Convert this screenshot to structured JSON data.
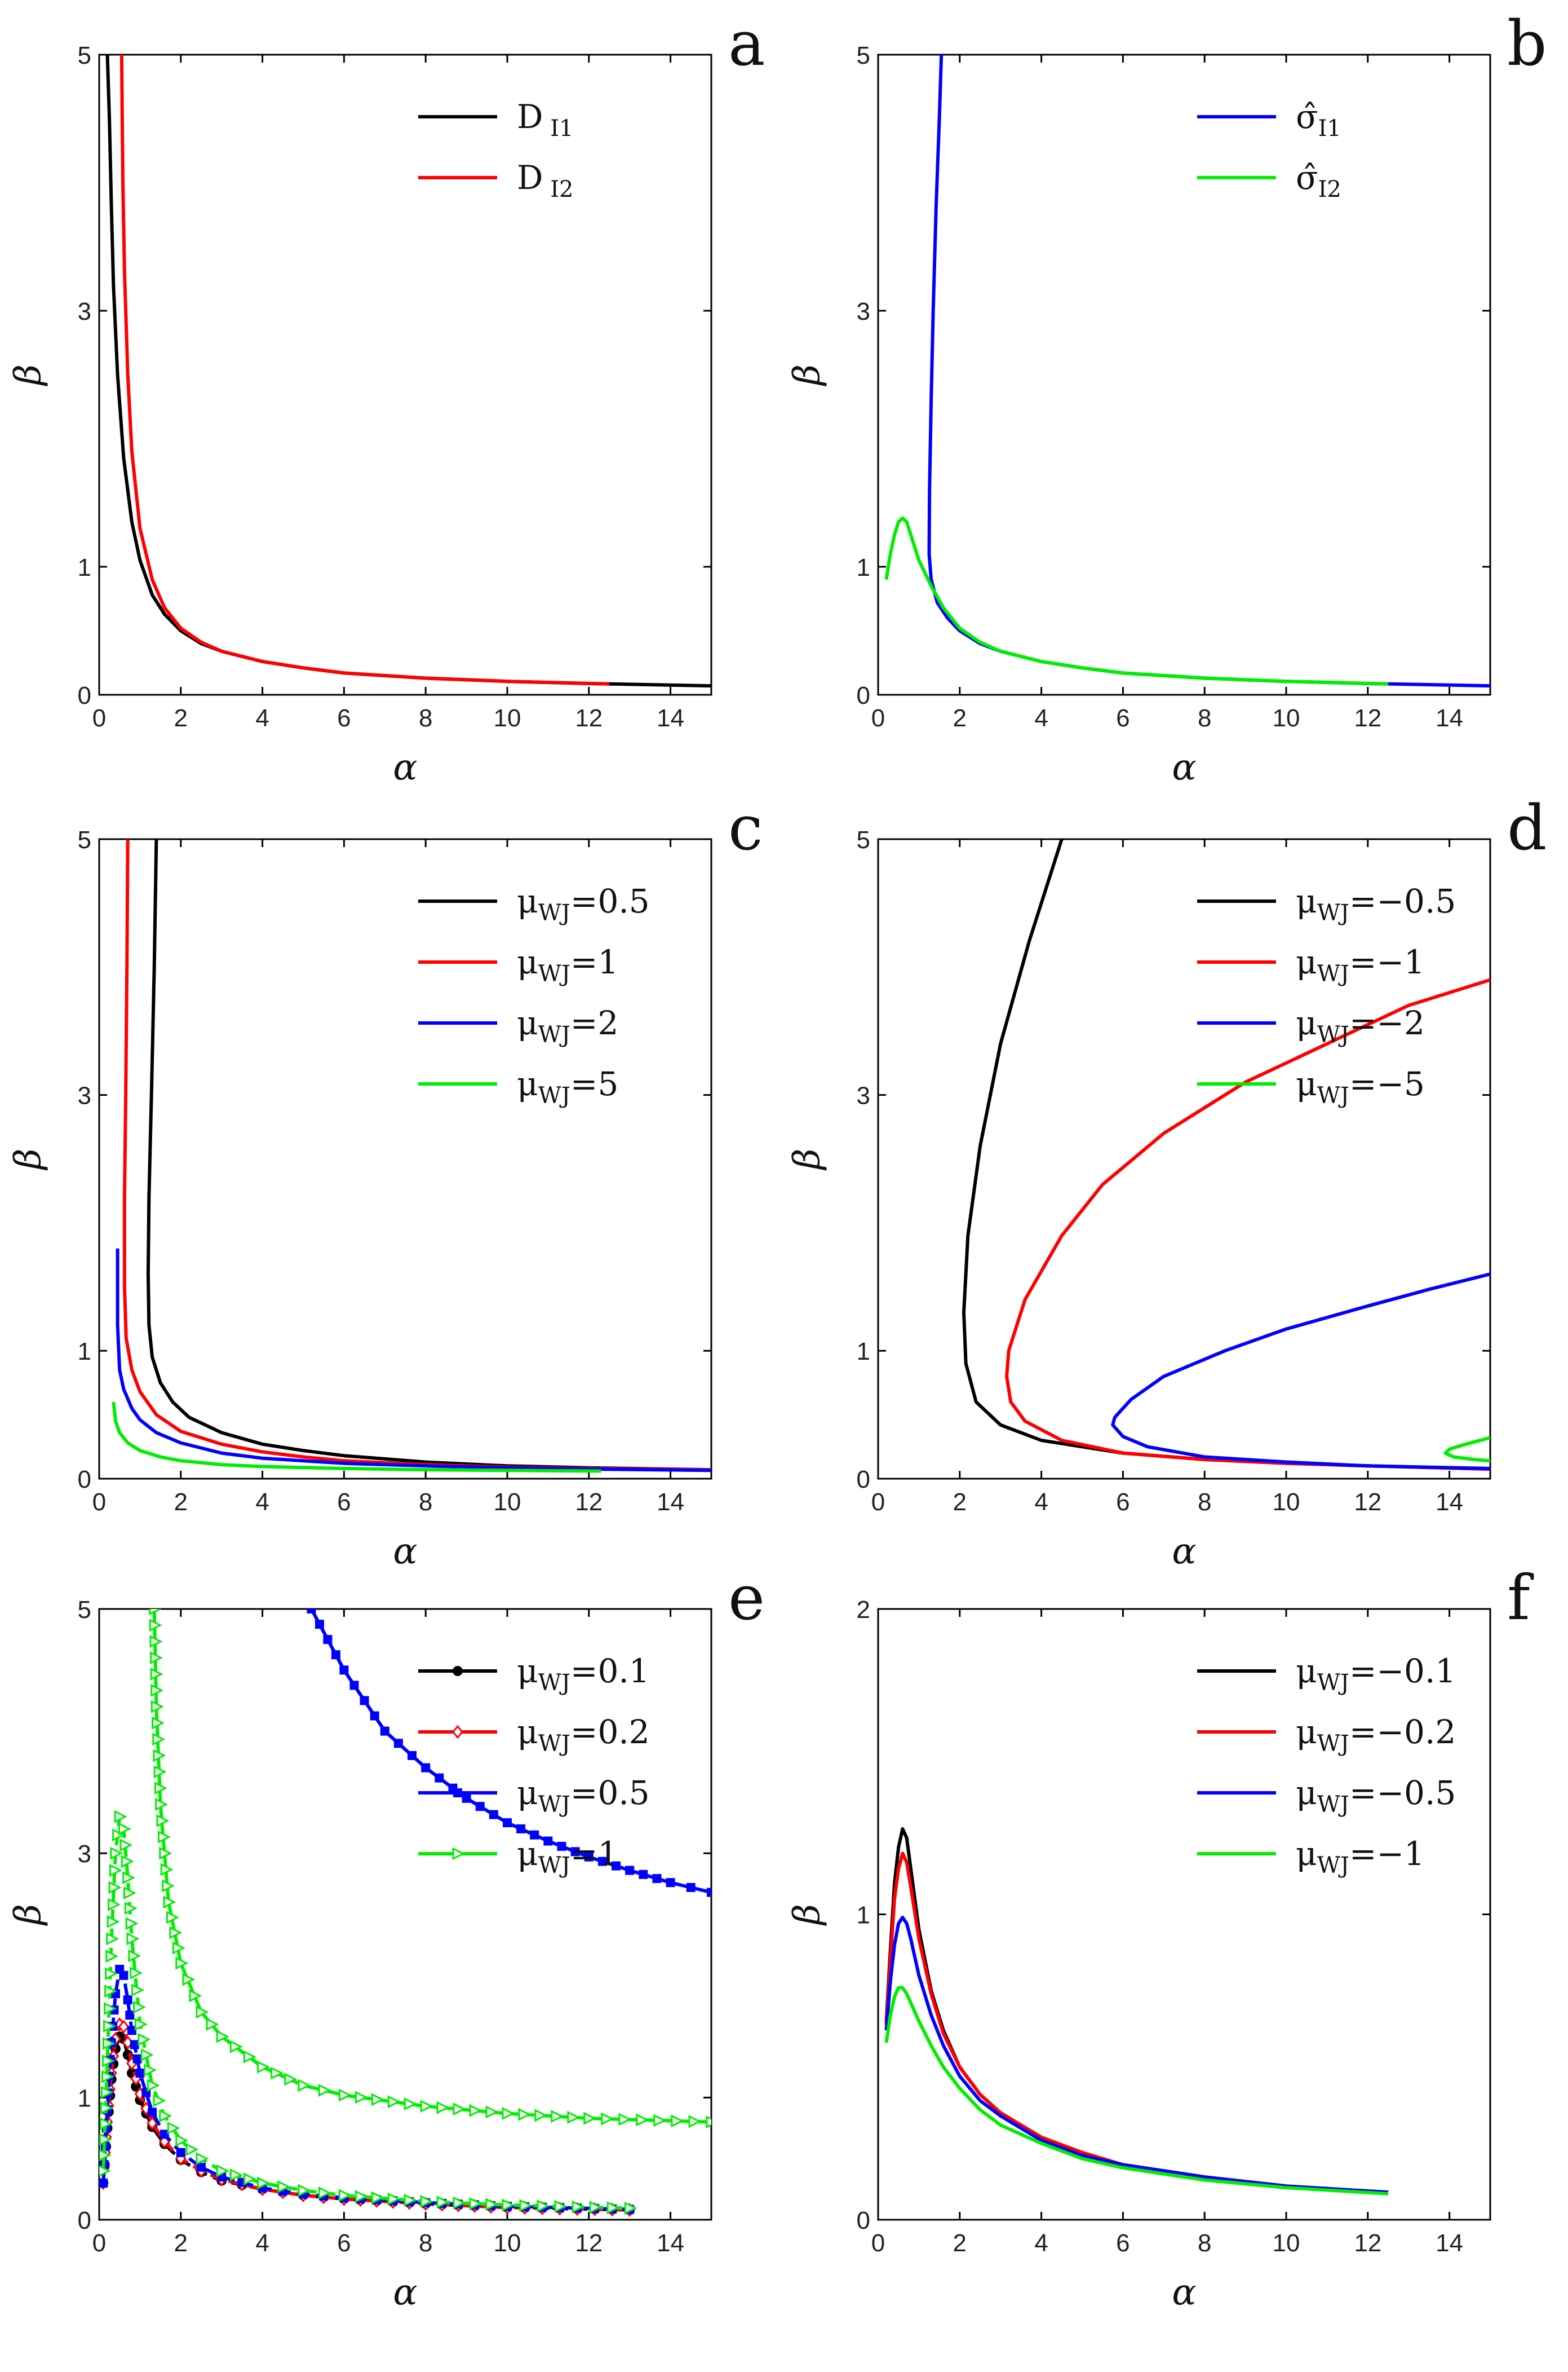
{
  "figure": {
    "description_count": 6
  },
  "chart_data": [
    {
      "panel": "a",
      "type": "line",
      "xlabel": "α",
      "ylabel": "β",
      "xlim": [
        0,
        15
      ],
      "ylim": [
        0,
        5
      ],
      "xticks": [
        0,
        2,
        4,
        6,
        8,
        10,
        12,
        14
      ],
      "yticks": [
        0,
        1,
        3,
        5
      ],
      "legend_position": "top-right",
      "series": [
        {
          "name": "D",
          "subscript": "I1",
          "color": "#000000",
          "x": [
            0.2,
            0.25,
            0.3,
            0.35,
            0.45,
            0.6,
            0.8,
            1.0,
            1.3,
            1.6,
            2.0,
            2.5,
            3,
            4,
            5,
            6,
            8,
            10,
            12,
            15
          ],
          "y": [
            5.0,
            4.5,
            3.8,
            3.2,
            2.5,
            1.85,
            1.35,
            1.05,
            0.78,
            0.63,
            0.5,
            0.4,
            0.34,
            0.26,
            0.21,
            0.17,
            0.13,
            0.105,
            0.088,
            0.07
          ]
        },
        {
          "name": "D",
          "subscript": "I2",
          "color": "#ff0000",
          "x": [
            0.55,
            0.58,
            0.62,
            0.7,
            0.8,
            1.0,
            1.3,
            1.6,
            2.0,
            2.5,
            3,
            4,
            5,
            6,
            8,
            10,
            12.5
          ],
          "y": [
            5.0,
            4.0,
            3.3,
            2.5,
            1.9,
            1.3,
            0.9,
            0.68,
            0.52,
            0.41,
            0.34,
            0.26,
            0.21,
            0.17,
            0.13,
            0.105,
            0.085
          ]
        }
      ]
    },
    {
      "panel": "b",
      "type": "line",
      "xlabel": "α",
      "ylabel": "β",
      "xlim": [
        0,
        15
      ],
      "ylim": [
        0,
        5
      ],
      "xticks": [
        0,
        2,
        4,
        6,
        8,
        10,
        12,
        14
      ],
      "yticks": [
        0,
        1,
        3,
        5
      ],
      "legend_position": "top-right",
      "series": [
        {
          "name": "σ̂",
          "subscript": "I1",
          "color": "#0000ff",
          "x": [
            1.55,
            1.5,
            1.42,
            1.35,
            1.3,
            1.26,
            1.25,
            1.3,
            1.45,
            1.7,
            2.0,
            2.5,
            3,
            4,
            5,
            6,
            8,
            10,
            12,
            15
          ],
          "y": [
            5.0,
            4.5,
            3.8,
            3.0,
            2.3,
            1.6,
            1.1,
            0.9,
            0.72,
            0.6,
            0.5,
            0.4,
            0.34,
            0.26,
            0.21,
            0.17,
            0.13,
            0.105,
            0.088,
            0.07
          ]
        },
        {
          "name": "σ̂",
          "subscript": "I2",
          "color": "#00ee00",
          "x": [
            0.2,
            0.3,
            0.4,
            0.5,
            0.6,
            0.7,
            0.8,
            1.0,
            1.3,
            1.6,
            2.0,
            2.5,
            3,
            4,
            5,
            6,
            8,
            10,
            12.5
          ],
          "y": [
            0.9,
            1.1,
            1.25,
            1.35,
            1.38,
            1.35,
            1.25,
            1.05,
            0.85,
            0.68,
            0.52,
            0.41,
            0.34,
            0.26,
            0.21,
            0.17,
            0.13,
            0.105,
            0.085
          ]
        }
      ]
    },
    {
      "panel": "c",
      "type": "line",
      "xlabel": "α",
      "ylabel": "β",
      "xlim": [
        0,
        15
      ],
      "ylim": [
        0,
        5
      ],
      "xticks": [
        0,
        2,
        4,
        6,
        8,
        10,
        12,
        14
      ],
      "yticks": [
        0,
        1,
        3,
        5
      ],
      "legend_position": "top-right",
      "series": [
        {
          "name": "μ",
          "subscript": "WJ",
          "suffix": "=0.5",
          "color": "#000000",
          "x": [
            1.4,
            1.35,
            1.28,
            1.22,
            1.2,
            1.22,
            1.3,
            1.5,
            1.8,
            2.2,
            3,
            4,
            5,
            6,
            8,
            10,
            12,
            15
          ],
          "y": [
            5.0,
            4.0,
            3.0,
            2.2,
            1.6,
            1.2,
            0.95,
            0.75,
            0.6,
            0.48,
            0.36,
            0.27,
            0.22,
            0.18,
            0.13,
            0.1,
            0.085,
            0.07
          ]
        },
        {
          "name": "μ",
          "subscript": "WJ",
          "suffix": "=1",
          "color": "#ff0000",
          "x": [
            0.7,
            0.68,
            0.65,
            0.62,
            0.62,
            0.66,
            0.8,
            1.0,
            1.4,
            2.0,
            3,
            4,
            5,
            6,
            8,
            10,
            12,
            15
          ],
          "y": [
            5.0,
            4.0,
            3.0,
            2.2,
            1.5,
            1.1,
            0.85,
            0.68,
            0.5,
            0.37,
            0.27,
            0.21,
            0.17,
            0.14,
            0.11,
            0.09,
            0.08,
            0.07
          ]
        },
        {
          "name": "μ",
          "subscript": "WJ",
          "suffix": "=2",
          "color": "#0000ff",
          "x": [
            0.45,
            0.45,
            0.5,
            0.6,
            0.8,
            1.0,
            1.4,
            2.0,
            3,
            4,
            6,
            8,
            10,
            12,
            15
          ],
          "y": [
            1.8,
            1.2,
            0.85,
            0.7,
            0.55,
            0.46,
            0.36,
            0.28,
            0.2,
            0.16,
            0.12,
            0.1,
            0.085,
            0.075,
            0.065
          ]
        },
        {
          "name": "μ",
          "subscript": "WJ",
          "suffix": "=5",
          "color": "#00ee00",
          "x": [
            0.35,
            0.4,
            0.5,
            0.7,
            1.0,
            1.5,
            2.0,
            3,
            4,
            6,
            8,
            10,
            12.3
          ],
          "y": [
            0.6,
            0.45,
            0.36,
            0.28,
            0.22,
            0.17,
            0.14,
            0.11,
            0.095,
            0.08,
            0.07,
            0.065,
            0.06
          ]
        }
      ]
    },
    {
      "panel": "d",
      "type": "line",
      "xlabel": "α",
      "ylabel": "β",
      "xlim": [
        0,
        15
      ],
      "ylim": [
        0,
        5
      ],
      "xticks": [
        0,
        2,
        4,
        6,
        8,
        10,
        12,
        14
      ],
      "yticks": [
        0,
        1,
        3,
        5
      ],
      "legend_position": "top-right",
      "series": [
        {
          "name": "μ",
          "subscript": "WJ",
          "suffix": "=−0.5",
          "color": "#000000",
          "x": [
            4.5,
            3.7,
            3.0,
            2.5,
            2.2,
            2.1,
            2.15,
            2.4,
            3.0,
            4,
            6,
            8,
            10,
            12,
            15
          ],
          "y": [
            5.0,
            4.2,
            3.4,
            2.6,
            1.9,
            1.3,
            0.9,
            0.6,
            0.42,
            0.3,
            0.2,
            0.15,
            0.12,
            0.1,
            0.075
          ]
        },
        {
          "name": "μ",
          "subscript": "WJ",
          "suffix": "=−1",
          "color": "#ff0000",
          "x": [
            15,
            13,
            11,
            9,
            7,
            5.5,
            4.5,
            3.6,
            3.2,
            3.15,
            3.25,
            3.6,
            4.5,
            6,
            8,
            10,
            12,
            15
          ],
          "y": [
            3.9,
            3.7,
            3.4,
            3.1,
            2.7,
            2.3,
            1.9,
            1.4,
            1.0,
            0.8,
            0.6,
            0.45,
            0.3,
            0.2,
            0.15,
            0.12,
            0.1,
            0.075
          ]
        },
        {
          "name": "μ",
          "subscript": "WJ",
          "suffix": "=−2",
          "color": "#0000ff",
          "x": [
            15,
            13.5,
            12,
            10,
            8.5,
            7,
            6.2,
            5.8,
            5.75,
            6.0,
            6.6,
            8,
            10,
            12,
            15
          ],
          "y": [
            1.6,
            1.48,
            1.35,
            1.17,
            1.0,
            0.8,
            0.62,
            0.48,
            0.42,
            0.33,
            0.25,
            0.17,
            0.13,
            0.1,
            0.08
          ]
        },
        {
          "name": "μ",
          "subscript": "WJ",
          "suffix": "=−5",
          "color": "#00ee00",
          "x": [
            15,
            14.4,
            14.0,
            13.9,
            14.1,
            14.6,
            15
          ],
          "y": [
            0.32,
            0.27,
            0.23,
            0.2,
            0.17,
            0.15,
            0.14
          ]
        }
      ]
    },
    {
      "panel": "e",
      "type": "line",
      "xlabel": "α",
      "ylabel": "β",
      "xlim": [
        0,
        15
      ],
      "ylim": [
        0,
        5
      ],
      "xticks": [
        0,
        2,
        4,
        6,
        8,
        10,
        12,
        14
      ],
      "yticks": [
        0,
        1,
        3,
        5
      ],
      "legend_position": "top-right",
      "series": [
        {
          "name": "μ",
          "subscript": "WJ",
          "suffix": "=0.1",
          "color": "#000000",
          "marker": "dot",
          "dashed": true,
          "x": [
            0.1,
            0.2,
            0.3,
            0.4,
            0.5,
            0.6,
            0.7,
            0.8,
            1.0,
            1.3,
            1.6,
            2.0,
            2.5,
            3,
            4,
            5,
            6,
            8,
            10,
            13
          ],
          "y": [
            0.3,
            0.75,
            1.15,
            1.4,
            1.5,
            1.48,
            1.35,
            1.2,
            0.98,
            0.76,
            0.62,
            0.49,
            0.39,
            0.32,
            0.25,
            0.2,
            0.17,
            0.13,
            0.1,
            0.08
          ]
        },
        {
          "name": "μ",
          "subscript": "WJ",
          "suffix": "=0.2",
          "color": "#ff0000",
          "marker": "diamond",
          "dashed": true,
          "x": [
            0.1,
            0.2,
            0.3,
            0.4,
            0.5,
            0.6,
            0.7,
            0.8,
            1.0,
            1.3,
            1.6,
            2.0,
            2.5,
            3,
            4,
            5,
            6,
            8,
            10,
            13
          ],
          "y": [
            0.3,
            0.8,
            1.2,
            1.48,
            1.6,
            1.58,
            1.45,
            1.28,
            1.03,
            0.79,
            0.64,
            0.5,
            0.4,
            0.33,
            0.25,
            0.2,
            0.17,
            0.13,
            0.1,
            0.08
          ]
        },
        {
          "name": "μ",
          "subscript": "WJ",
          "suffix": "=0.5",
          "color": "#0000ff",
          "marker": "square",
          "dashed": true,
          "x": [
            0.1,
            0.2,
            0.3,
            0.4,
            0.5,
            0.6,
            0.7,
            0.8,
            1.0,
            1.3,
            1.6,
            2.0,
            2.5,
            3,
            4,
            5,
            6,
            8,
            10,
            13
          ],
          "y": [
            0.3,
            0.9,
            1.45,
            1.85,
            2.05,
            2.0,
            1.8,
            1.55,
            1.2,
            0.88,
            0.7,
            0.55,
            0.43,
            0.35,
            0.26,
            0.21,
            0.18,
            0.14,
            0.11,
            0.085
          ]
        },
        {
          "name": "μ",
          "subscript": "WJ",
          "suffix": "=1",
          "color": "#00ee00",
          "marker": "triangle",
          "dashed": true,
          "x": [
            0.1,
            0.2,
            0.3,
            0.4,
            0.5,
            0.6,
            0.7,
            0.8,
            1.0,
            1.3,
            1.6,
            2.0,
            2.5,
            3,
            4,
            5,
            6,
            8,
            10,
            13
          ],
          "y": [
            0.4,
            1.3,
            2.3,
            3.0,
            3.3,
            3.2,
            2.8,
            2.3,
            1.6,
            1.1,
            0.85,
            0.65,
            0.5,
            0.4,
            0.3,
            0.24,
            0.2,
            0.15,
            0.12,
            0.095
          ]
        },
        {
          "name": "μ",
          "subscript": "WJ",
          "suffix": "=0.5",
          "color": "#0000ff",
          "marker": "square",
          "dashed": false,
          "legend": false,
          "x": [
            5.2,
            6,
            7,
            8,
            9,
            10,
            11,
            12,
            13,
            14,
            15
          ],
          "y": [
            5.0,
            4.5,
            4.0,
            3.7,
            3.45,
            3.25,
            3.1,
            2.97,
            2.86,
            2.76,
            2.68
          ]
        },
        {
          "name": "μ",
          "subscript": "WJ",
          "suffix": "=1",
          "color": "#00ee00",
          "marker": "triangle",
          "dashed": false,
          "legend": false,
          "x": [
            1.35,
            1.4,
            1.5,
            1.7,
            2.0,
            2.5,
            3,
            4,
            5,
            6,
            8,
            10,
            12,
            15
          ],
          "y": [
            5.0,
            4.2,
            3.4,
            2.6,
            2.1,
            1.7,
            1.5,
            1.25,
            1.1,
            1.02,
            0.93,
            0.87,
            0.83,
            0.8
          ]
        }
      ]
    },
    {
      "panel": "f",
      "type": "line",
      "xlabel": "α",
      "ylabel": "β",
      "xlim": [
        0,
        15
      ],
      "ylim": [
        0,
        2
      ],
      "xticks": [
        0,
        2,
        4,
        6,
        8,
        10,
        12,
        14
      ],
      "yticks": [
        0,
        1,
        2
      ],
      "legend_position": "top-right",
      "series": [
        {
          "name": "μ",
          "subscript": "WJ",
          "suffix": "=−0.1",
          "color": "#000000",
          "x": [
            0.2,
            0.3,
            0.4,
            0.5,
            0.6,
            0.7,
            0.8,
            1.0,
            1.3,
            1.6,
            2.0,
            2.5,
            3,
            4,
            5,
            6,
            8,
            10,
            12.5
          ],
          "y": [
            0.65,
            0.88,
            1.1,
            1.22,
            1.28,
            1.25,
            1.15,
            0.95,
            0.75,
            0.62,
            0.5,
            0.41,
            0.35,
            0.27,
            0.22,
            0.18,
            0.14,
            0.11,
            0.09
          ]
        },
        {
          "name": "μ",
          "subscript": "WJ",
          "suffix": "=−0.2",
          "color": "#ff0000",
          "x": [
            0.2,
            0.3,
            0.4,
            0.5,
            0.6,
            0.7,
            0.8,
            1.0,
            1.3,
            1.6,
            2.0,
            2.5,
            3,
            4,
            5,
            6,
            8,
            10,
            12.5
          ],
          "y": [
            0.64,
            0.85,
            1.05,
            1.15,
            1.2,
            1.17,
            1.09,
            0.92,
            0.74,
            0.61,
            0.5,
            0.41,
            0.35,
            0.27,
            0.22,
            0.18,
            0.14,
            0.11,
            0.09
          ]
        },
        {
          "name": "μ",
          "subscript": "WJ",
          "suffix": "=−0.5",
          "color": "#0000ff",
          "x": [
            0.2,
            0.3,
            0.4,
            0.5,
            0.6,
            0.7,
            0.8,
            1.0,
            1.3,
            1.6,
            2.0,
            2.5,
            3,
            4,
            5,
            6,
            8,
            10,
            12.5
          ],
          "y": [
            0.62,
            0.78,
            0.9,
            0.97,
            0.99,
            0.97,
            0.92,
            0.8,
            0.67,
            0.57,
            0.47,
            0.39,
            0.34,
            0.26,
            0.21,
            0.18,
            0.14,
            0.11,
            0.09
          ]
        },
        {
          "name": "μ",
          "subscript": "WJ",
          "suffix": "=−1",
          "color": "#00ee00",
          "x": [
            0.2,
            0.3,
            0.4,
            0.5,
            0.6,
            0.7,
            0.8,
            1.0,
            1.3,
            1.6,
            2.0,
            2.5,
            3,
            4,
            5,
            6,
            8,
            10,
            12.5
          ],
          "y": [
            0.58,
            0.67,
            0.73,
            0.76,
            0.76,
            0.74,
            0.71,
            0.65,
            0.57,
            0.5,
            0.43,
            0.36,
            0.31,
            0.25,
            0.2,
            0.17,
            0.13,
            0.105,
            0.085
          ]
        }
      ]
    }
  ]
}
